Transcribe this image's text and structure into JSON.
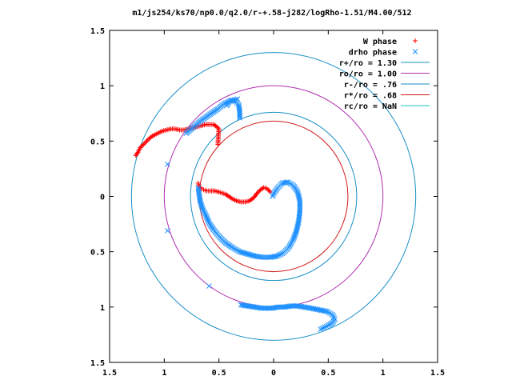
{
  "chart_data": {
    "type": "scatter",
    "title": "m1/js254/ks70/np0.0/q2.0/r-+.58-j282/logRho-1.51/M4.00/512",
    "xlim": [
      -1.5,
      1.5
    ],
    "ylim": [
      -1.5,
      1.5
    ],
    "xticks": [
      -1.5,
      -1,
      -0.5,
      0,
      0.5,
      1,
      1.5
    ],
    "yticks": [
      -1.5,
      -1,
      -0.5,
      0,
      0.5,
      1,
      1.5
    ],
    "xtick_labels": [
      "1.5",
      "1",
      "0.5",
      "0",
      "0.5",
      "1",
      "1.5"
    ],
    "ytick_labels": [
      "1.5",
      "1",
      "0.5",
      "0",
      "0.5",
      "1",
      "1.5"
    ],
    "grid": false,
    "legend_position": "top-right",
    "series": [
      {
        "name": "W phase",
        "marker": "plus",
        "color": "#ff0000",
        "points": [
          [
            -1.26,
            0.37
          ],
          [
            -1.24,
            0.4
          ],
          [
            -1.22,
            0.44
          ],
          [
            -1.19,
            0.47
          ],
          [
            -1.16,
            0.5
          ],
          [
            -1.13,
            0.53
          ],
          [
            -1.1,
            0.55
          ],
          [
            -1.06,
            0.57
          ],
          [
            -1.02,
            0.59
          ],
          [
            -0.98,
            0.6
          ],
          [
            -0.94,
            0.61
          ],
          [
            -0.9,
            0.61
          ],
          [
            -0.86,
            0.6
          ],
          [
            -0.82,
            0.6
          ],
          [
            -0.78,
            0.61
          ],
          [
            -0.74,
            0.62
          ],
          [
            -0.7,
            0.63
          ],
          [
            -0.66,
            0.64
          ],
          [
            -0.62,
            0.65
          ],
          [
            -0.58,
            0.65
          ],
          [
            -0.55,
            0.65
          ],
          [
            -0.52,
            0.63
          ],
          [
            -0.5,
            0.61
          ],
          [
            -0.51,
            0.47
          ],
          [
            -0.69,
            0.12
          ],
          [
            -0.68,
            0.09
          ],
          [
            -0.66,
            0.07
          ],
          [
            -0.64,
            0.06
          ],
          [
            -0.61,
            0.05
          ],
          [
            -0.58,
            0.05
          ],
          [
            -0.54,
            0.05
          ],
          [
            -0.5,
            0.04
          ],
          [
            -0.47,
            0.03
          ],
          [
            -0.44,
            0.02
          ],
          [
            -0.41,
            0.0
          ],
          [
            -0.38,
            -0.02
          ],
          [
            -0.34,
            -0.04
          ],
          [
            -0.3,
            -0.05
          ],
          [
            -0.26,
            -0.05
          ],
          [
            -0.22,
            -0.04
          ],
          [
            -0.18,
            -0.01
          ],
          [
            -0.15,
            0.03
          ],
          [
            -0.12,
            0.06
          ],
          [
            -0.09,
            0.08
          ],
          [
            -0.06,
            0.07
          ],
          [
            -0.03,
            0.04
          ]
        ]
      },
      {
        "name": "drho phase",
        "marker": "cross",
        "color": "#1e90ff",
        "points": [
          [
            -0.33,
            0.88
          ],
          [
            -0.36,
            0.87
          ],
          [
            -0.4,
            0.86
          ],
          [
            -0.45,
            0.84
          ],
          [
            -0.51,
            0.79
          ],
          [
            -0.57,
            0.75
          ],
          [
            -0.67,
            0.68
          ],
          [
            -0.8,
            0.57
          ],
          [
            -0.97,
            0.29
          ],
          [
            -0.97,
            -0.31
          ],
          [
            -0.59,
            -0.81
          ],
          [
            -0.3,
            -0.98
          ],
          [
            -0.11,
            -1.01
          ],
          [
            -0.01,
            -1.01
          ],
          [
            0.04,
            -1.0
          ],
          [
            0.1,
            -1.0
          ],
          [
            0.16,
            -0.99
          ],
          [
            0.22,
            -0.99
          ],
          [
            0.28,
            -1.0
          ],
          [
            0.34,
            -1.01
          ],
          [
            0.39,
            -1.02
          ],
          [
            0.44,
            -1.03
          ],
          [
            0.49,
            -1.04
          ],
          [
            0.54,
            -1.07
          ],
          [
            0.56,
            -1.11
          ],
          [
            0.54,
            -1.14
          ],
          [
            0.51,
            -1.16
          ],
          [
            0.47,
            -1.18
          ],
          [
            0.43,
            -1.2
          ],
          [
            -0.31,
            0.71
          ],
          [
            -0.31,
            0.77
          ],
          [
            -0.32,
            0.83
          ],
          [
            -0.35,
            0.86
          ],
          [
            -0.39,
            0.87
          ],
          [
            -0.41,
            0.85
          ],
          [
            -0.43,
            0.82
          ],
          [
            -0.69,
            0.08
          ],
          [
            -0.68,
            0.01
          ],
          [
            -0.67,
            -0.05
          ],
          [
            -0.65,
            -0.11
          ],
          [
            -0.62,
            -0.17
          ],
          [
            -0.59,
            -0.24
          ],
          [
            -0.55,
            -0.3
          ],
          [
            -0.5,
            -0.36
          ],
          [
            -0.44,
            -0.42
          ],
          [
            -0.38,
            -0.46
          ],
          [
            -0.31,
            -0.5
          ],
          [
            -0.24,
            -0.52
          ],
          [
            -0.17,
            -0.54
          ],
          [
            -0.1,
            -0.55
          ],
          [
            -0.03,
            -0.55
          ],
          [
            0.03,
            -0.54
          ],
          [
            0.09,
            -0.51
          ],
          [
            0.14,
            -0.46
          ],
          [
            0.18,
            -0.39
          ],
          [
            0.21,
            -0.31
          ],
          [
            0.23,
            -0.22
          ],
          [
            0.24,
            -0.13
          ],
          [
            0.24,
            -0.04
          ],
          [
            0.22,
            0.04
          ],
          [
            0.18,
            0.1
          ],
          [
            0.13,
            0.13
          ],
          [
            0.08,
            0.12
          ],
          [
            0.04,
            0.08
          ],
          [
            0.01,
            0.04
          ],
          [
            -0.01,
            0.0
          ]
        ]
      },
      {
        "name": "r+/ro = 1.30",
        "type": "circle",
        "radius": 1.3,
        "color": "#1a8fc8"
      },
      {
        "name": "ro/ro = 1.00",
        "type": "circle",
        "radius": 1.0,
        "color": "#b02db0"
      },
      {
        "name": "r-/ro = .76",
        "type": "circle",
        "radius": 0.76,
        "color": "#1a8fc8"
      },
      {
        "name": "r*/ro = .68",
        "type": "circle",
        "radius": 0.68,
        "color": "#d01818"
      },
      {
        "name": "rc/ro = NaN",
        "type": "circle",
        "radius": null,
        "color": "#20c0c0"
      }
    ]
  }
}
